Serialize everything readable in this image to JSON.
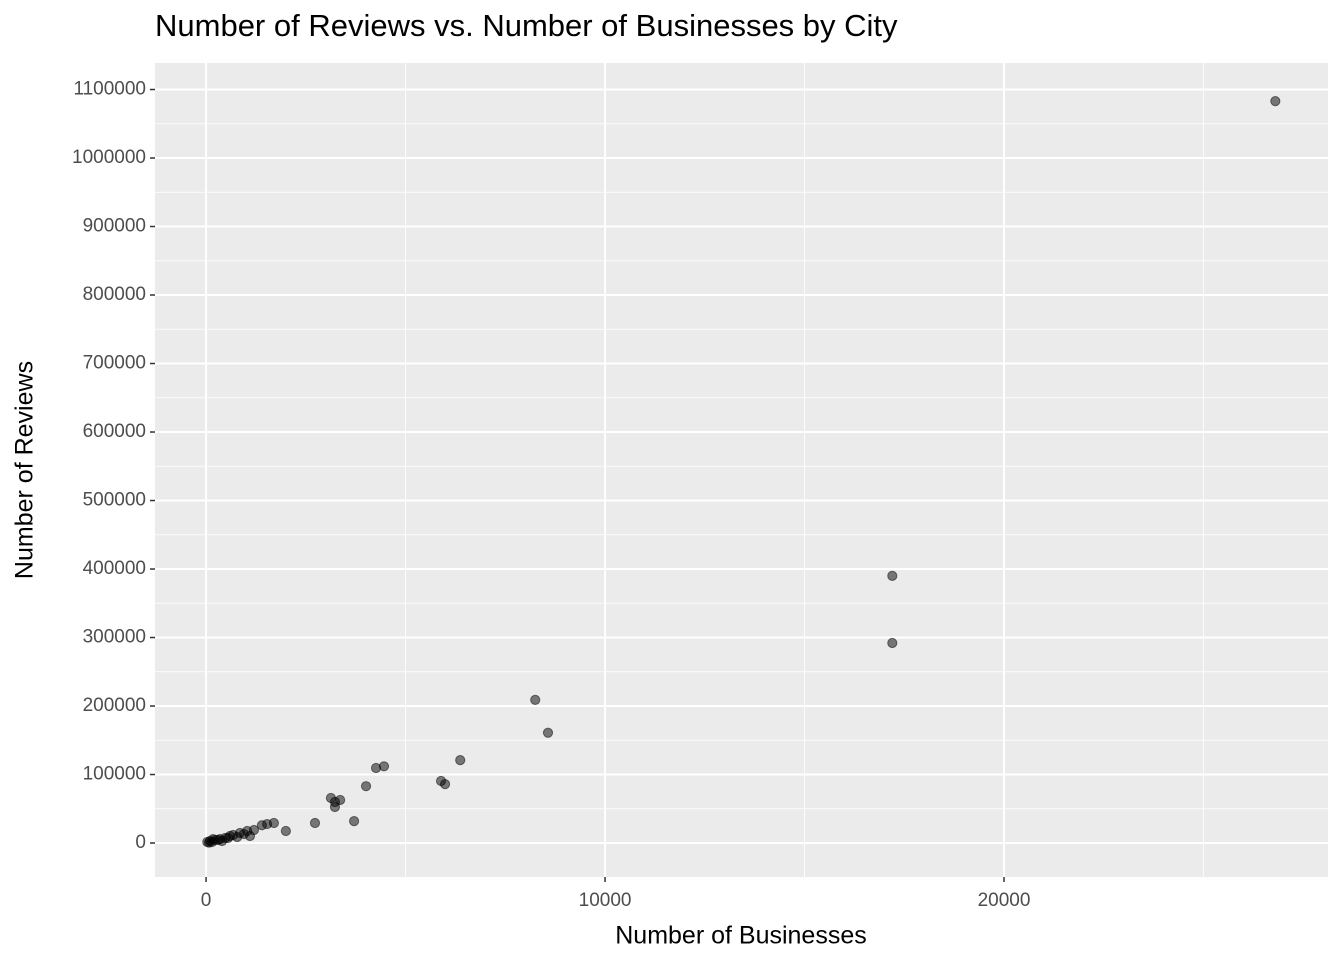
{
  "chart_data": {
    "type": "scatter",
    "title": "Number of Reviews vs. Number of Businesses by City",
    "x_label": "Number of Businesses",
    "y_label": "Number of Reviews",
    "x": [
      26800,
      17200,
      17200,
      8250,
      8570,
      6370,
      5890,
      5990,
      4460,
      4260,
      4010,
      3710,
      3130,
      3360,
      3230,
      3230,
      2730,
      2000,
      1700,
      1530,
      1400,
      1200,
      1030,
      1100,
      850,
      780,
      600,
      480,
      350,
      230,
      100,
      30,
      150,
      300,
      550,
      680,
      950,
      75,
      400,
      175
    ],
    "values": [
      1083000,
      390000,
      292000,
      209000,
      161000,
      121000,
      90500,
      86000,
      112000,
      109500,
      83000,
      32000,
      65700,
      62800,
      52600,
      59900,
      29200,
      17500,
      29200,
      27700,
      26000,
      19000,
      17500,
      10200,
      14600,
      8800,
      10200,
      7300,
      5800,
      4400,
      2900,
      1500,
      1500,
      4400,
      7300,
      11700,
      13100,
      500,
      2900,
      5800
    ],
    "color": "#000000",
    "alpha": 0.5,
    "xlim": [
      -1280,
      28120
    ],
    "ylim": [
      -49600,
      1138700
    ],
    "xticks": [
      0,
      10000,
      20000
    ],
    "yticks": [
      0,
      100000,
      200000,
      300000,
      400000,
      500000,
      600000,
      700000,
      800000,
      900000,
      1000000,
      1100000
    ],
    "x_minor_ticks": [
      5000,
      15000,
      25000
    ],
    "y_minor_ticks": [
      50000,
      150000,
      250000,
      350000,
      450000,
      550000,
      650000,
      750000,
      850000,
      950000,
      1050000
    ],
    "grid": true
  }
}
